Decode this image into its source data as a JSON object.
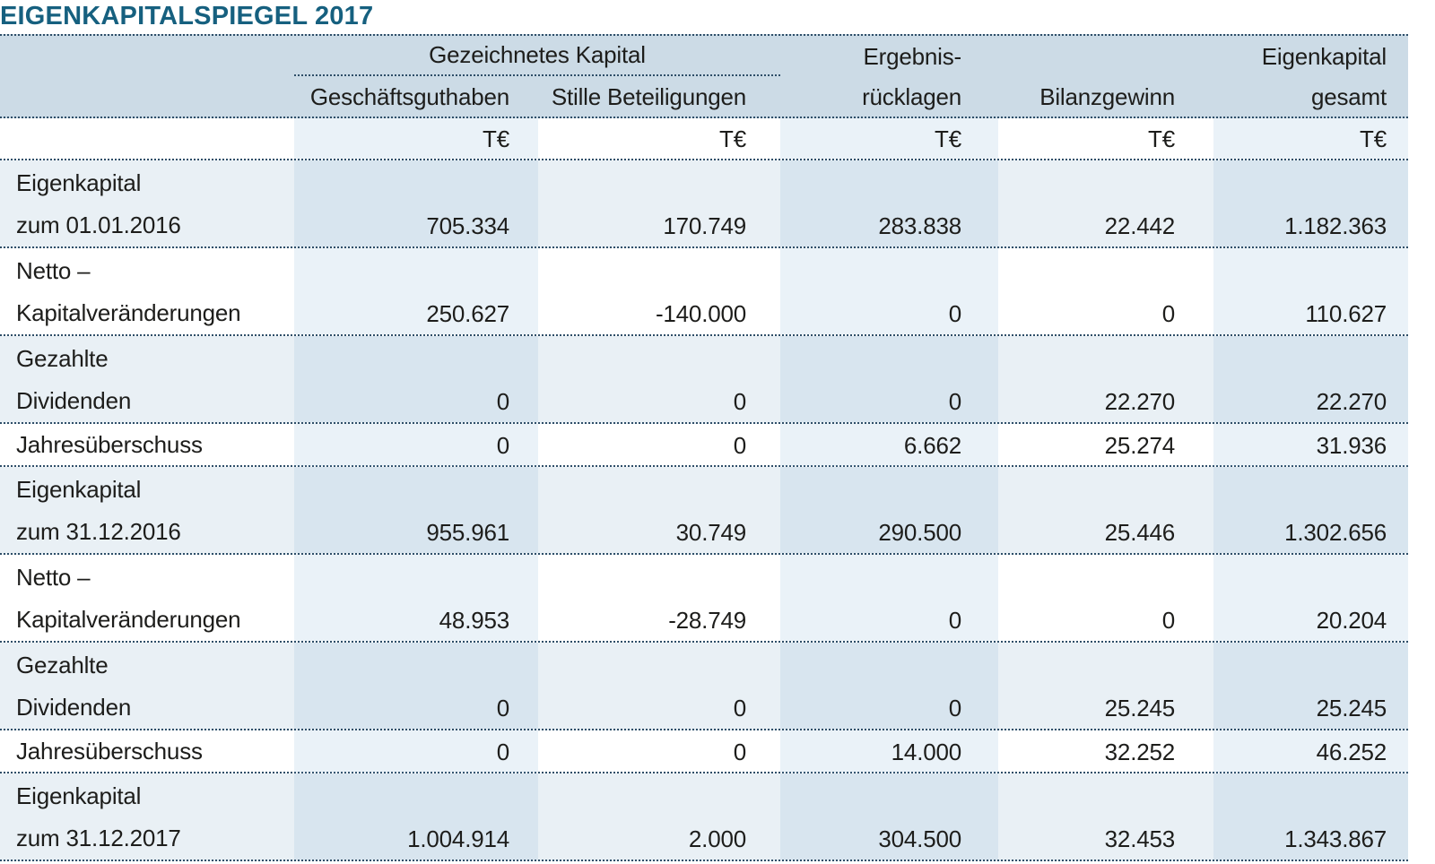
{
  "title": "EIGENKAPITALSPIEGEL 2017",
  "table": {
    "unit_label": "T€",
    "units": [
      "T€",
      "T€",
      "T€",
      "T€",
      "T€"
    ],
    "column_group_label": "Gezeichnetes Kapital",
    "columns": {
      "geschaeftsguthaben": "Geschäftsguthaben",
      "stille_beteiligungen": "Stille Beteiligungen",
      "ergebnisruecklagen_line1": "Ergebnis-",
      "ergebnisruecklagen_line2": "rücklagen",
      "bilanzgewinn": "Bilanzgewinn",
      "eigenkapital_gesamt_line1": "Eigenkapital",
      "eigenkapital_gesamt_line2": "gesamt"
    },
    "rows": [
      {
        "label_line1": "Eigenkapital",
        "label_line2": "zum 01.01.2016",
        "values": [
          "705.334",
          "170.749",
          "283.838",
          "22.442",
          "1.182.363"
        ]
      },
      {
        "label_line1": "Netto –",
        "label_line2": "Kapitalveränderungen",
        "values": [
          "250.627",
          "-140.000",
          "0",
          "0",
          "110.627"
        ]
      },
      {
        "label_line1": "Gezahlte",
        "label_line2": "Dividenden",
        "values": [
          "0",
          "0",
          "0",
          "22.270",
          "22.270"
        ]
      },
      {
        "label_line1": "Jahresüberschuss",
        "label_line2": "",
        "values": [
          "0",
          "0",
          "6.662",
          "25.274",
          "31.936"
        ]
      },
      {
        "label_line1": "Eigenkapital",
        "label_line2": "zum 31.12.2016",
        "values": [
          "955.961",
          "30.749",
          "290.500",
          "25.446",
          "1.302.656"
        ]
      },
      {
        "label_line1": "Netto –",
        "label_line2": "Kapitalveränderungen",
        "values": [
          "48.953",
          "-28.749",
          "0",
          "0",
          "20.204"
        ]
      },
      {
        "label_line1": "Gezahlte",
        "label_line2": "Dividenden",
        "values": [
          "0",
          "0",
          "0",
          "25.245",
          "25.245"
        ]
      },
      {
        "label_line1": "Jahresüberschuss",
        "label_line2": "",
        "values": [
          "0",
          "0",
          "14.000",
          "32.252",
          "46.252"
        ]
      },
      {
        "label_line1": "Eigenkapital",
        "label_line2": "zum 31.12.2017",
        "values": [
          "1.004.914",
          "2.000",
          "304.500",
          "32.453",
          "1.343.867"
        ]
      }
    ]
  },
  "colors": {
    "title": "#16607f",
    "header_band": "#ccdbe6",
    "row_shaded": "#e9f0f5",
    "row_plain": "#ffffff",
    "column_tint": "rgba(140,185,215,0.18)",
    "dotted_border": "#2e4e68",
    "text": "#1d1d1b"
  }
}
